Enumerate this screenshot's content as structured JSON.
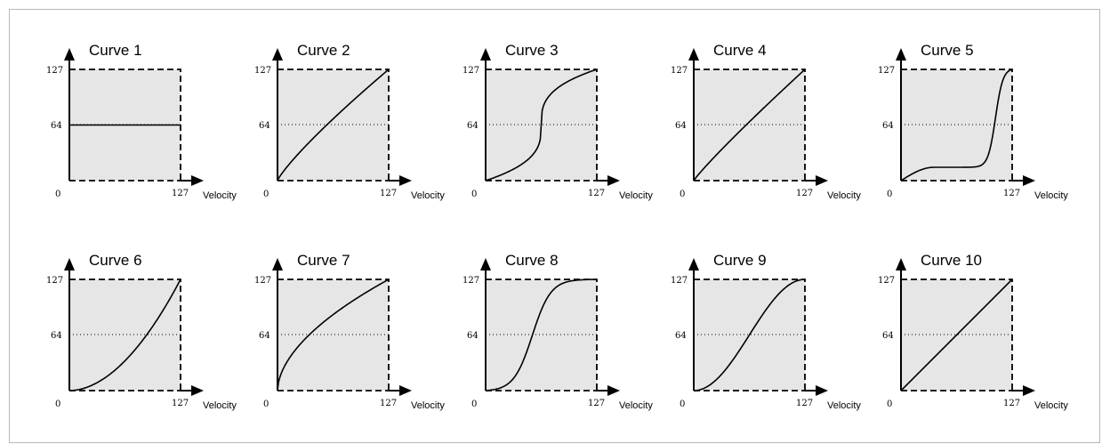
{
  "axis_labels": {
    "origin": "0",
    "y_max": "127",
    "y_mid": "64",
    "x_max": "127",
    "x_axis": "Velocity"
  },
  "curves": [
    {
      "title": "Curve 1",
      "shape": "flat-at-mid-level"
    },
    {
      "title": "Curve 2",
      "shape": "concave-rise"
    },
    {
      "title": "Curve 3",
      "shape": "steep-start-flat-middle-steep-end"
    },
    {
      "title": "Curve 4",
      "shape": "slightly-concave-rise"
    },
    {
      "title": "Curve 5",
      "shape": "low-flat-then-steep-rise"
    },
    {
      "title": "Curve 6",
      "shape": "convex-rise"
    },
    {
      "title": "Curve 7",
      "shape": "log-like-rise"
    },
    {
      "title": "Curve 8",
      "shape": "steep-s-curve"
    },
    {
      "title": "Curve 9",
      "shape": "gentle-s-curve"
    },
    {
      "title": "Curve 10",
      "shape": "linear"
    }
  ]
}
